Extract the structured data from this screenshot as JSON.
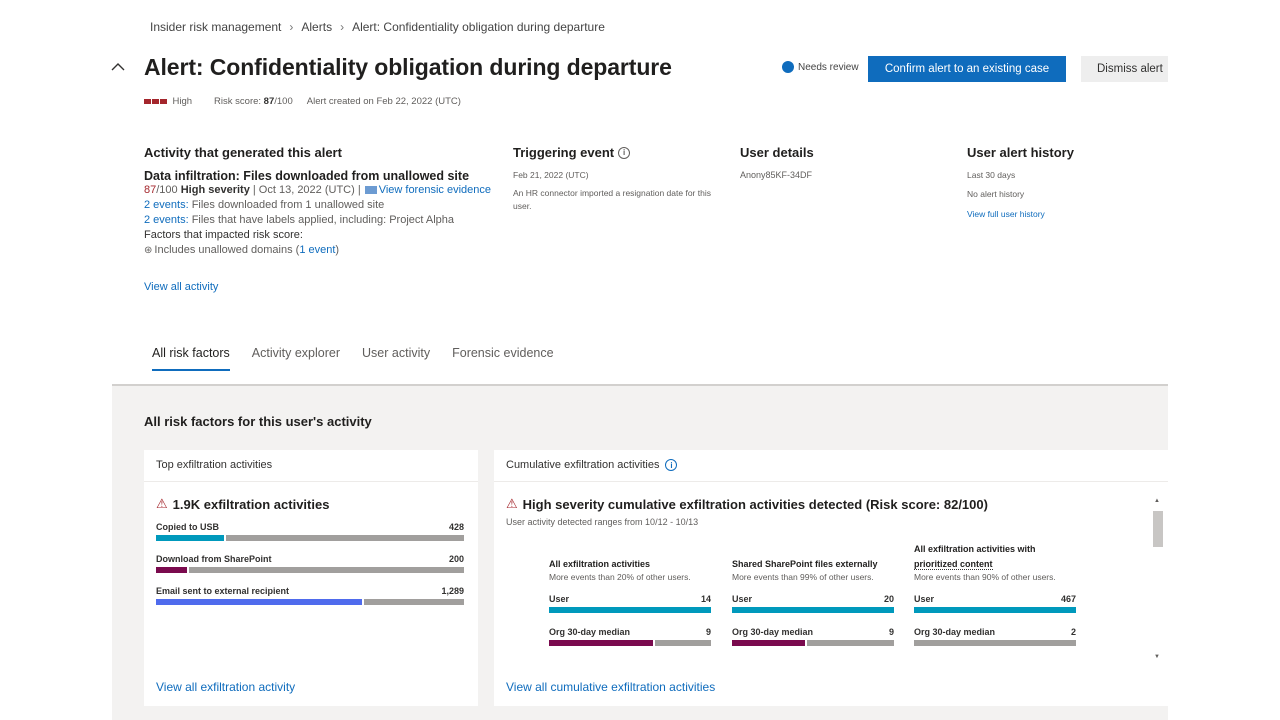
{
  "breadcrumb": {
    "items": [
      "Insider risk management",
      "Alerts",
      "Alert: Confidentiality obligation during departure"
    ]
  },
  "header": {
    "title": "Alert: Confidentiality obligation during departure",
    "status": "Needs review",
    "confirm_button": "Confirm alert to an existing case",
    "dismiss_button": "Dismiss alert"
  },
  "meta": {
    "severity": "High",
    "risk_score_label": "Risk score:",
    "risk_score_value": "87",
    "risk_score_max": "/100",
    "created": "Alert created on Feb 22, 2022 (UTC)"
  },
  "activity": {
    "title": "Activity that generated this alert",
    "headline": "Data infiltration: Files downloaded from unallowed site",
    "score_red": "87",
    "score_rest": "/100",
    "severity_text": "High severity",
    "date_text": " | Oct 13, 2022 (UTC) |",
    "forensic_link": "View forensic evidence",
    "line1_link": "2 events:",
    "line1_text": " Files downloaded from 1 unallowed site",
    "line2_link": "2 events:",
    "line2_text": " Files that have labels applied, including: Project Alpha",
    "factors_title": "Factors that impacted risk score:",
    "factor_text": "Includes unallowed domains (",
    "factor_link": "1 event",
    "factor_close": ")",
    "view_all": "View all activity"
  },
  "triggering": {
    "title": "Triggering event",
    "date": "Feb 21, 2022 (UTC)",
    "description": "An HR connector imported a resignation date for this user."
  },
  "user_details": {
    "title": "User details",
    "user": "Anony85KF-34DF"
  },
  "history": {
    "title": "User alert history",
    "period": "Last 30 days",
    "none": "No alert history",
    "link": "View full user history"
  },
  "tabs": [
    "All risk factors",
    "Activity explorer",
    "User activity",
    "Forensic evidence"
  ],
  "risk_section_title": "All risk factors for this user's activity",
  "top_card": {
    "header": "Top exfiltration activities",
    "headline": "1.9K exfiltration activities",
    "bars": [
      {
        "label": "Copied to USB",
        "value": "428",
        "fraction": 0.22,
        "color": "#0099bc"
      },
      {
        "label": "Download from SharePoint",
        "value": "200",
        "fraction": 0.1,
        "color": "#7a0a4e"
      },
      {
        "label": "Email sent to external recipient",
        "value": "1,289",
        "fraction": 0.67,
        "color": "#4f6bed"
      }
    ],
    "link": "View all exfiltration activity"
  },
  "cumulative_card": {
    "header": "Cumulative exfiltration activities",
    "headline": "High severity cumulative exfiltration activities detected (Risk score: 82/100)",
    "subtitle": "User activity detected ranges from 10/12 - 10/13",
    "metrics": [
      {
        "title": "All exfiltration activities",
        "title_underlined": "",
        "sub": "More events than 20% of other users.",
        "user_label": "User",
        "user_value": "14",
        "user_fraction": 1.0,
        "median_label": "Org 30-day median",
        "median_value": "9",
        "median_fraction": 0.64
      },
      {
        "title": "Shared SharePoint files externally",
        "title_underlined": "",
        "sub": "More events than 99% of other users.",
        "user_label": "User",
        "user_value": "20",
        "user_fraction": 1.0,
        "median_label": "Org 30-day median",
        "median_value": "9",
        "median_fraction": 0.45
      },
      {
        "title": "All exfiltration activities with",
        "title_underlined": "prioritized content",
        "sub": "More events than 90% of other users.",
        "user_label": "User",
        "user_value": "467",
        "user_fraction": 1.0,
        "median_label": "Org 30-day median",
        "median_value": "2",
        "median_fraction": 0.0
      }
    ],
    "link": "View all cumulative exfiltration activities"
  },
  "colors": {
    "accent": "#0f6cbd",
    "severity": "#a4262c",
    "user_bar": "#0099bc",
    "median_bar": "#7a0a4e",
    "track": "#a19f9d"
  }
}
